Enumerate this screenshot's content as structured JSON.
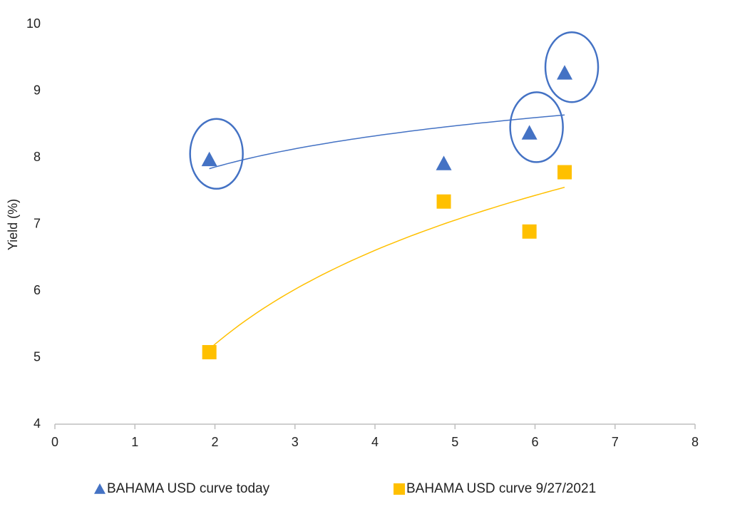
{
  "chart_data": {
    "type": "scatter",
    "y_label": "Yield (%)",
    "xlim": [
      0,
      8
    ],
    "xticks": [
      0,
      1,
      2,
      3,
      4,
      5,
      6,
      7,
      8
    ],
    "ylim": [
      4,
      10
    ],
    "yticks": [
      4,
      5,
      6,
      7,
      8,
      9,
      10
    ],
    "grid": false,
    "trendline": "logarithmic",
    "legend": "bottom",
    "series": [
      {
        "name": "BAHAMA USD curve today",
        "color": "#4472c4",
        "marker": "triangle",
        "x": [
          1.93,
          4.86,
          5.93,
          6.37
        ],
        "values": [
          7.97,
          7.91,
          8.37,
          9.27
        ],
        "highlighted_points": [
          0,
          2,
          3
        ]
      },
      {
        "name": "BAHAMA USD curve 9/27/2021",
        "color": "#ffc000",
        "marker": "square",
        "x": [
          1.93,
          4.86,
          5.93,
          6.37
        ],
        "values": [
          5.08,
          7.34,
          6.89,
          7.78
        ]
      }
    ]
  }
}
